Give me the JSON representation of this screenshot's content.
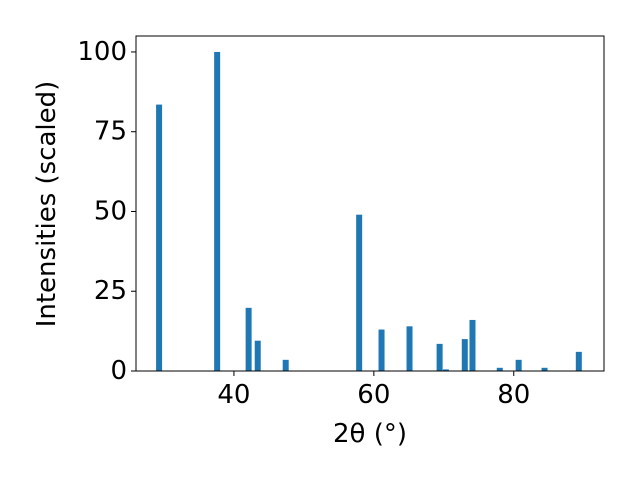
{
  "chart_data": {
    "type": "bar",
    "xlabel": "2θ (°)",
    "ylabel": "Intensities (scaled)",
    "x": [
      29.3,
      37.6,
      42.1,
      43.4,
      47.4,
      57.9,
      61.1,
      65.1,
      69.4,
      70.3,
      73.0,
      74.1,
      78.0,
      80.7,
      84.4,
      89.3
    ],
    "values": [
      83.5,
      100,
      19.8,
      9.5,
      3.5,
      49,
      13,
      14,
      8.5,
      0.5,
      10,
      16,
      1,
      3.5,
      1,
      6
    ],
    "color": "#1f77b4",
    "xlim": [
      26,
      92.9
    ],
    "ylim": [
      0,
      105
    ],
    "xticks": [
      40,
      60,
      80
    ],
    "yticks": [
      0,
      25,
      50,
      75,
      100
    ]
  }
}
